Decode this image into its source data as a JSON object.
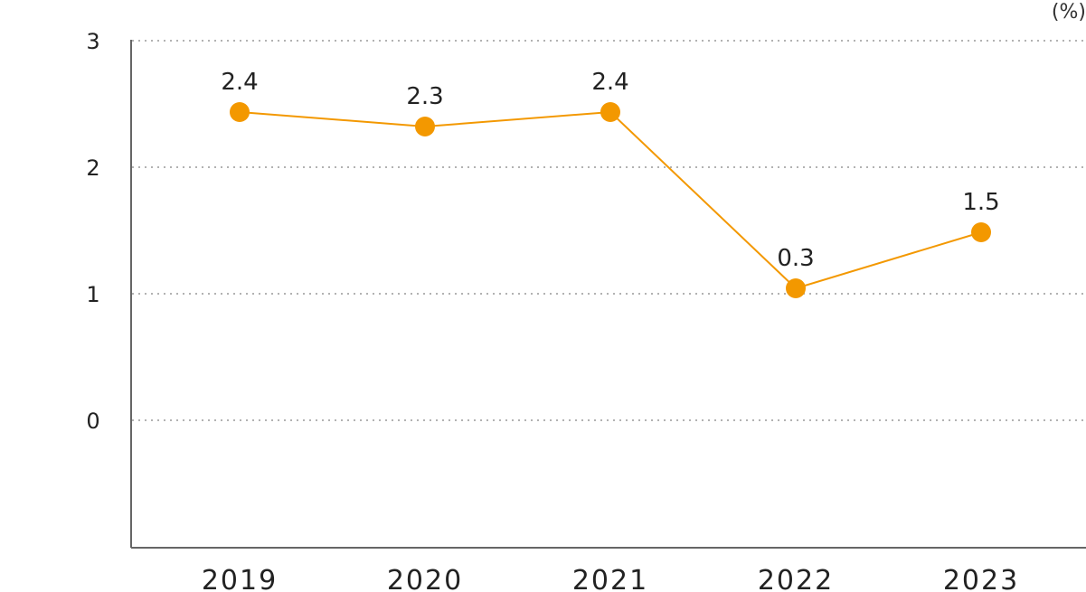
{
  "chart_data": {
    "type": "line",
    "unit": "(%)",
    "x": [
      "2019",
      "2020",
      "2021",
      "2022",
      "2023"
    ],
    "series": [
      {
        "values": [
          2.4,
          2.3,
          2.4,
          0.3,
          1.5
        ],
        "data_labels": [
          "2.4",
          "2.3",
          "2.4",
          "0.3",
          "1.5"
        ],
        "color": "#F39800"
      }
    ],
    "yticks": [
      "0",
      "1",
      "2",
      "3"
    ],
    "grid": true,
    "legend": "none"
  }
}
